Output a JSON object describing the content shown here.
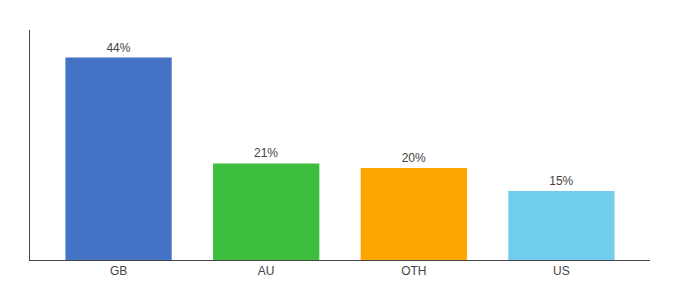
{
  "chart_data": {
    "type": "bar",
    "categories": [
      "GB",
      "AU",
      "OTH",
      "US"
    ],
    "values": [
      44,
      21,
      20,
      15
    ],
    "value_labels": [
      "44%",
      "21%",
      "20%",
      "15%"
    ],
    "colors": [
      "#4472C4",
      "#3DBF3D",
      "#FFA500",
      "#70CEEC"
    ],
    "ylim": [
      0,
      50
    ],
    "grid": false,
    "data_labels": true,
    "tick_labels": "x"
  }
}
